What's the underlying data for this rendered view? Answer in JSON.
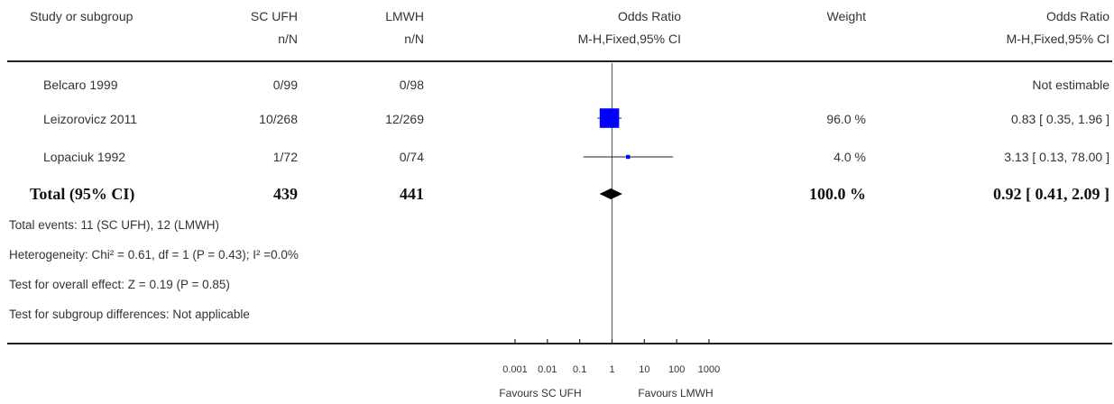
{
  "headers": {
    "study": "Study or subgroup",
    "group1": "SC UFH",
    "group1_sub": "n/N",
    "group2": "LMWH",
    "group2_sub": "n/N",
    "or_plot": "Odds Ratio",
    "or_plot_sub": "M-H,Fixed,95% CI",
    "weight": "Weight",
    "or_text": "Odds Ratio",
    "or_text_sub": "M-H,Fixed,95% CI"
  },
  "studies": [
    {
      "name": "Belcaro 1999",
      "g1": "0/99",
      "g2": "0/98",
      "weight": "",
      "ci": "Not estimable"
    },
    {
      "name": "Leizorovicz 2011",
      "g1": "10/268",
      "g2": "12/269",
      "weight": "96.0 %",
      "ci": "0.83 [ 0.35, 1.96 ]"
    },
    {
      "name": "Lopaciuk 1992",
      "g1": "1/72",
      "g2": "0/74",
      "weight": "4.0 %",
      "ci": "3.13 [ 0.13, 78.00 ]"
    }
  ],
  "total": {
    "label": "Total (95% CI)",
    "g1": "439",
    "g2": "441",
    "weight": "100.0 %",
    "ci": "0.92 [ 0.41, 2.09 ]"
  },
  "footnotes": {
    "events": "Total events: 11 (SC UFH), 12 (LMWH)",
    "heterogeneity": "Heterogeneity: Chi² = 0.61, df = 1 (P = 0.43); I² =0.0%",
    "overall": "Test for overall effect: Z = 0.19 (P = 0.85)",
    "subgroup": "Test for subgroup differences: Not applicable"
  },
  "axis": {
    "favours_left": "Favours SC UFH",
    "favours_right": "Favours LMWH"
  },
  "colors": {
    "square": "#0000ff",
    "line": "#222222",
    "diamond": "#000000"
  },
  "chart_data": {
    "type": "forest",
    "scale": "log",
    "xlim": [
      0.001,
      1000
    ],
    "ticks": [
      {
        "value": 0.001,
        "label": "0.001"
      },
      {
        "value": 0.01,
        "label": "0.01"
      },
      {
        "value": 0.1,
        "label": "0.1"
      },
      {
        "value": 1,
        "label": "1"
      },
      {
        "value": 10,
        "label": "10"
      },
      {
        "value": 100,
        "label": "100"
      },
      {
        "value": 1000,
        "label": "1000"
      }
    ],
    "estimates": [
      {
        "study": "Belcaro 1999",
        "estimable": false
      },
      {
        "study": "Leizorovicz 2011",
        "or": 0.83,
        "lo": 0.35,
        "hi": 1.96,
        "weight": 96.0
      },
      {
        "study": "Lopaciuk 1992",
        "or": 3.13,
        "lo": 0.13,
        "hi": 78.0,
        "weight": 4.0
      }
    ],
    "total": {
      "or": 0.92,
      "lo": 0.41,
      "hi": 2.09
    }
  }
}
